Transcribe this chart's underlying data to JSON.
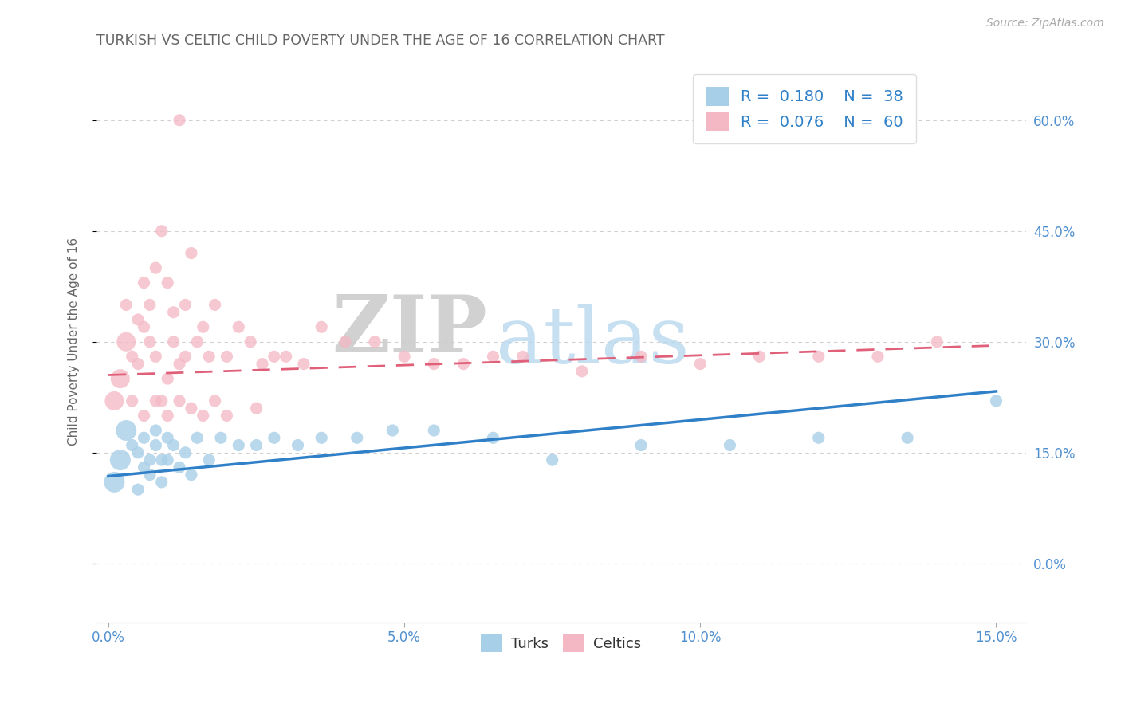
{
  "title": "TURKISH VS CELTIC CHILD POVERTY UNDER THE AGE OF 16 CORRELATION CHART",
  "source": "Source: ZipAtlas.com",
  "ylabel": "Child Poverty Under the Age of 16",
  "xlim": [
    -0.002,
    0.155
  ],
  "ylim": [
    -0.08,
    0.68
  ],
  "xticks": [
    0.0,
    0.05,
    0.1,
    0.15
  ],
  "xtick_labels": [
    "0.0%",
    "5.0%",
    "10.0%",
    "15.0%"
  ],
  "yticks": [
    0.0,
    0.15,
    0.3,
    0.45,
    0.6
  ],
  "ytick_labels_right": [
    "0.0%",
    "15.0%",
    "30.0%",
    "45.0%",
    "60.0%"
  ],
  "legend_R_turks": "0.180",
  "legend_N_turks": "38",
  "legend_R_celtics": "0.076",
  "legend_N_celtics": "60",
  "turks_color": "#a8cfe8",
  "celtics_color": "#f4b8c4",
  "turks_line_color": "#3080c8",
  "celtics_line_color": "#e0607a",
  "background_color": "#ffffff",
  "grid_color": "#d0d0d0",
  "watermark_ZIP": "ZIP",
  "watermark_atlas": "atlas",
  "title_color": "#666666",
  "axis_label_color": "#666666",
  "tick_color": "#5090d0",
  "turks_x": [
    0.001,
    0.002,
    0.003,
    0.004,
    0.005,
    0.005,
    0.006,
    0.006,
    0.007,
    0.007,
    0.008,
    0.008,
    0.009,
    0.009,
    0.01,
    0.01,
    0.011,
    0.012,
    0.013,
    0.014,
    0.015,
    0.017,
    0.019,
    0.022,
    0.025,
    0.028,
    0.032,
    0.036,
    0.042,
    0.048,
    0.055,
    0.065,
    0.075,
    0.09,
    0.105,
    0.12,
    0.135,
    0.15
  ],
  "turks_y": [
    0.11,
    0.14,
    0.18,
    0.16,
    0.1,
    0.15,
    0.13,
    0.17,
    0.12,
    0.14,
    0.16,
    0.18,
    0.14,
    0.11,
    0.17,
    0.14,
    0.16,
    0.13,
    0.15,
    0.12,
    0.17,
    0.14,
    0.17,
    0.16,
    0.16,
    0.17,
    0.16,
    0.17,
    0.17,
    0.18,
    0.18,
    0.17,
    0.14,
    0.16,
    0.16,
    0.17,
    0.17,
    0.22
  ],
  "celtics_x": [
    0.001,
    0.002,
    0.003,
    0.003,
    0.004,
    0.005,
    0.005,
    0.006,
    0.006,
    0.007,
    0.007,
    0.008,
    0.008,
    0.009,
    0.009,
    0.01,
    0.01,
    0.011,
    0.011,
    0.012,
    0.012,
    0.013,
    0.013,
    0.014,
    0.015,
    0.016,
    0.017,
    0.018,
    0.02,
    0.022,
    0.024,
    0.026,
    0.028,
    0.03,
    0.033,
    0.036,
    0.04,
    0.045,
    0.05,
    0.055,
    0.06,
    0.065,
    0.07,
    0.08,
    0.09,
    0.1,
    0.11,
    0.12,
    0.13,
    0.14,
    0.004,
    0.006,
    0.008,
    0.01,
    0.012,
    0.014,
    0.016,
    0.018,
    0.02,
    0.025
  ],
  "celtics_y": [
    0.22,
    0.25,
    0.3,
    0.35,
    0.28,
    0.33,
    0.27,
    0.32,
    0.38,
    0.3,
    0.35,
    0.28,
    0.4,
    0.22,
    0.45,
    0.25,
    0.38,
    0.3,
    0.34,
    0.27,
    0.6,
    0.35,
    0.28,
    0.42,
    0.3,
    0.32,
    0.28,
    0.35,
    0.28,
    0.32,
    0.3,
    0.27,
    0.28,
    0.28,
    0.27,
    0.32,
    0.3,
    0.3,
    0.28,
    0.27,
    0.27,
    0.28,
    0.28,
    0.26,
    0.28,
    0.27,
    0.28,
    0.28,
    0.28,
    0.3,
    0.22,
    0.2,
    0.22,
    0.2,
    0.22,
    0.21,
    0.2,
    0.22,
    0.2,
    0.21
  ],
  "turks_trendline": [
    0.118,
    0.233
  ],
  "celtics_trendline": [
    0.255,
    0.295
  ]
}
